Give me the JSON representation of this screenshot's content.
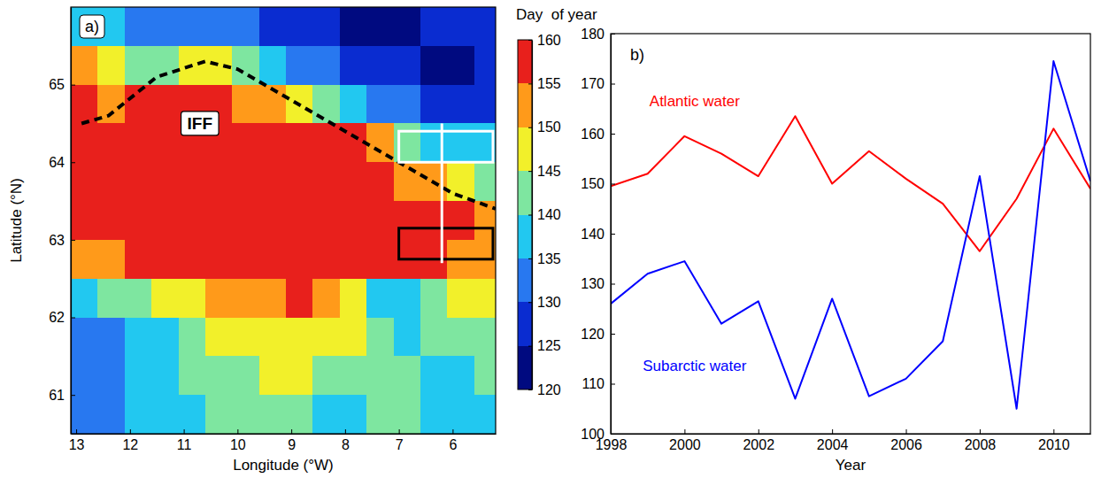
{
  "chart_data": [
    {
      "type": "heatmap",
      "panel": "a)",
      "x_label": "Longitude (°W)",
      "y_label": "Latitude (°N)",
      "x": [
        12.85,
        12.35,
        11.85,
        11.35,
        10.85,
        10.35,
        9.85,
        9.35,
        8.85,
        8.35,
        7.85,
        7.35,
        6.85,
        6.35,
        5.85,
        5.35
      ],
      "y": [
        65.75,
        65.25,
        64.75,
        64.25,
        63.75,
        63.25,
        62.75,
        62.25,
        61.75,
        61.25,
        60.75
      ],
      "values": [
        [
          138,
          135,
          132,
          133,
          130,
          130,
          130,
          128,
          128,
          125,
          124,
          124,
          124,
          126,
          126,
          127
        ],
        [
          150,
          145,
          140,
          143,
          148,
          147,
          140,
          135,
          132,
          130,
          128,
          126,
          125,
          124,
          124,
          125
        ],
        [
          155,
          152,
          155,
          155,
          155,
          155,
          153,
          150,
          145,
          140,
          135,
          132,
          130,
          128,
          127,
          128
        ],
        [
          157,
          158,
          158,
          158,
          158,
          158,
          158,
          158,
          158,
          157,
          155,
          150,
          143,
          138,
          136,
          135
        ],
        [
          157,
          158,
          158,
          158,
          158,
          157,
          157,
          157,
          157,
          157,
          157,
          155,
          153,
          150,
          146,
          143
        ],
        [
          157,
          157,
          157,
          158,
          158,
          158,
          157,
          157,
          157,
          157,
          157,
          157,
          156,
          156,
          155,
          153
        ],
        [
          150,
          152,
          155,
          156,
          156,
          156,
          155,
          155,
          156,
          157,
          157,
          156,
          155,
          155,
          154,
          152
        ],
        [
          138,
          140,
          143,
          146,
          148,
          150,
          150,
          152,
          155,
          152,
          145,
          138,
          135,
          140,
          145,
          148
        ],
        [
          133,
          134,
          136,
          138,
          142,
          145,
          147,
          148,
          148,
          147,
          145,
          140,
          138,
          140,
          142,
          143
        ],
        [
          133,
          134,
          135,
          137,
          140,
          142,
          144,
          145,
          145,
          142,
          140,
          140,
          140,
          138,
          138,
          140
        ],
        [
          132,
          133,
          135,
          137,
          138,
          140,
          142,
          142,
          140,
          138,
          138,
          140,
          140,
          138,
          137,
          138
        ]
      ],
      "xlim": [
        13.1,
        5.2
      ],
      "ylim": [
        60.5,
        66
      ],
      "xticks": [
        13,
        12,
        11,
        10,
        9,
        8,
        7,
        6
      ],
      "yticks": [
        61,
        62,
        63,
        64,
        65
      ],
      "colorbar": {
        "title": "Day  of year",
        "range": [
          120,
          160
        ],
        "ticks": [
          120,
          125,
          130,
          135,
          140,
          145,
          150,
          155,
          160
        ],
        "colors": [
          "#000a80",
          "#0a2cd0",
          "#2878f0",
          "#22c8f0",
          "#7ee6a0",
          "#f2f02a",
          "#ff9a1a",
          "#e8201c"
        ]
      },
      "annotations": [
        {
          "type": "line",
          "label": "IFF",
          "label_at": [
            10.7,
            64.5
          ],
          "line_style": "dashed",
          "color": "#000000",
          "x": [
            12.9,
            12.4,
            11.5,
            10.6,
            10.0,
            9.0,
            8.0,
            7.0,
            6.0,
            5.2
          ],
          "y": [
            64.5,
            64.6,
            65.1,
            65.3,
            65.2,
            64.8,
            64.4,
            64.0,
            63.6,
            63.4
          ]
        },
        {
          "type": "rect",
          "color": "#ffffff",
          "x": [
            7.0,
            5.25
          ],
          "y": [
            64.0,
            64.4
          ]
        },
        {
          "type": "rect",
          "color": "#000000",
          "x": [
            7.0,
            5.25
          ],
          "y": [
            62.75,
            63.15
          ]
        },
        {
          "type": "line",
          "line_style": "solid",
          "color": "#ffffff",
          "x": [
            6.2,
            6.2
          ],
          "y": [
            62.7,
            64.5
          ]
        }
      ]
    },
    {
      "type": "line",
      "panel": "b)",
      "x_label": "Year",
      "x": [
        1998,
        1999,
        2000,
        2001,
        2002,
        2003,
        2004,
        2005,
        2006,
        2007,
        2008,
        2009,
        2010,
        2011
      ],
      "series": [
        {
          "name": "Atlantic water",
          "color": "#ff0000",
          "values": [
            149.5,
            152,
            159.5,
            156,
            151.5,
            163.5,
            150,
            156.5,
            151,
            146,
            136.5,
            147,
            161,
            149
          ]
        },
        {
          "name": "Subarctic water",
          "color": "#0000ff",
          "values": [
            126,
            132,
            134.5,
            122,
            126.5,
            107,
            127,
            107.5,
            111,
            118.5,
            151.5,
            105,
            174.5,
            150.5
          ]
        }
      ],
      "xlim": [
        1998,
        2011
      ],
      "ylim": [
        100,
        180
      ],
      "xticks": [
        1998,
        2000,
        2002,
        2004,
        2006,
        2008,
        2010
      ],
      "yticks": [
        100,
        110,
        120,
        130,
        140,
        150,
        160,
        170,
        180
      ]
    }
  ]
}
